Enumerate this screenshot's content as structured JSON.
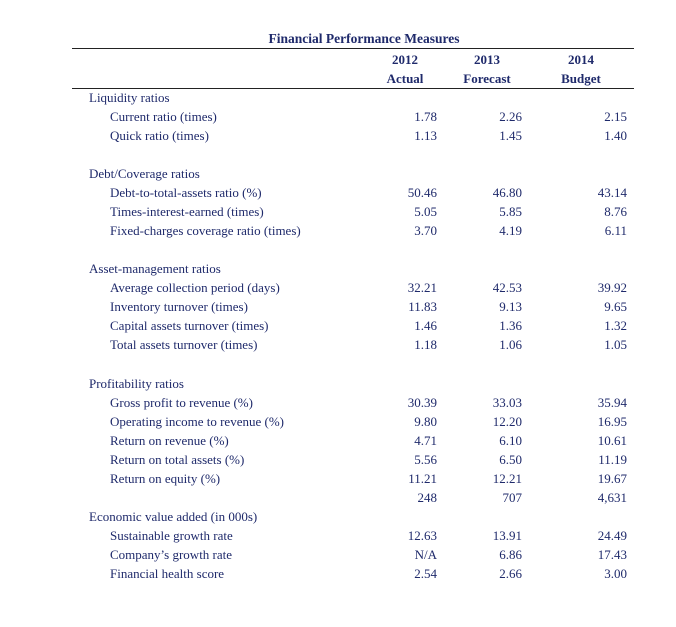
{
  "title": "Financial Performance Measures",
  "columns": [
    {
      "year": "2012",
      "type": "Actual"
    },
    {
      "year": "2013",
      "type": "Forecast"
    },
    {
      "year": "2014",
      "type": "Budget"
    }
  ],
  "sections": [
    {
      "name": "Liquidity ratios",
      "rows": [
        {
          "label": "Current ratio (times)",
          "values": [
            "1.78",
            "2.26",
            "2.15"
          ]
        },
        {
          "label": "Quick ratio (times)",
          "values": [
            "1.13",
            "1.45",
            "1.40"
          ]
        }
      ]
    },
    {
      "name": "Debt/Coverage ratios",
      "rows": [
        {
          "label": "Debt-to-total-assets ratio (%)",
          "values": [
            "50.46",
            "46.80",
            "43.14"
          ]
        },
        {
          "label": "Times-interest-earned (times)",
          "values": [
            "5.05",
            "5.85",
            "8.76"
          ]
        },
        {
          "label": "Fixed-charges coverage ratio (times)",
          "values": [
            "3.70",
            "4.19",
            "6.11"
          ]
        }
      ]
    },
    {
      "name": "Asset-management ratios",
      "rows": [
        {
          "label": "Average collection period (days)",
          "values": [
            "32.21",
            "42.53",
            "39.92"
          ]
        },
        {
          "label": "Inventory turnover (times)",
          "values": [
            "11.83",
            "9.13",
            "9.65"
          ]
        },
        {
          "label": "Capital assets turnover (times)",
          "values": [
            "1.46",
            "1.36",
            "1.32"
          ]
        },
        {
          "label": "Total assets turnover (times)",
          "values": [
            "1.18",
            "1.06",
            "1.05"
          ]
        }
      ]
    },
    {
      "name": "Profitability ratios",
      "rows": [
        {
          "label": "Gross profit to revenue (%)",
          "values": [
            "30.39",
            "33.03",
            "35.94"
          ]
        },
        {
          "label": "Operating income to revenue (%)",
          "values": [
            "9.80",
            "12.20",
            "16.95"
          ]
        },
        {
          "label": "Return on revenue (%)",
          "values": [
            "4.71",
            "6.10",
            "10.61"
          ]
        },
        {
          "label": "Return on total assets (%)",
          "values": [
            "5.56",
            "6.50",
            "11.19"
          ]
        },
        {
          "label": "Return on equity (%)",
          "values": [
            "11.21",
            "12.21",
            "19.67"
          ]
        },
        {
          "label": "",
          "values": [
            "248",
            "707",
            "4,631"
          ]
        }
      ]
    },
    {
      "name": "Economic value added (in 000s)",
      "rows": [
        {
          "label": "Sustainable growth rate",
          "values": [
            "12.63",
            "13.91",
            "24.49"
          ]
        },
        {
          "label": "Company’s growth rate",
          "values": [
            "N/A",
            "6.86",
            "17.43"
          ]
        },
        {
          "label": "Financial health score",
          "values": [
            "2.54",
            "2.66",
            "3.00"
          ]
        }
      ]
    }
  ]
}
